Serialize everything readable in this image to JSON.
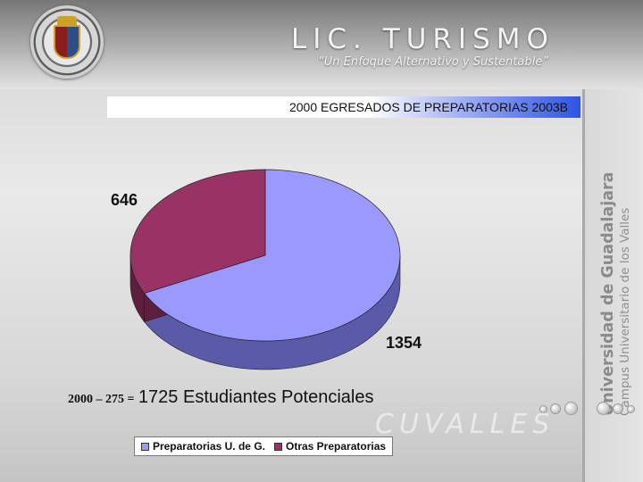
{
  "header": {
    "brand": "LIC. TURISMO",
    "tagline": "“Un Enfoque Alternativo y Sustentable”"
  },
  "side_panel": {
    "university": "Universidad de Guadalajara",
    "campus": "Campus Universitario de los Valles"
  },
  "footer": {
    "watermark": "CUVALLES",
    "calculation": "2000 – 275 =",
    "result": "1725 Estudiantes Potenciales"
  },
  "icons": {
    "seal": "university-seal-icon"
  },
  "chart_data": {
    "type": "pie",
    "title": "2000 EGRESADOS DE PREPARATORIAS 2003B",
    "series": [
      {
        "name": "Preparatorias U. de G.",
        "value": 1354,
        "color": "#9999ff",
        "side_color": "#5a5aa8"
      },
      {
        "name": "Otras Preparatorias",
        "value": 646,
        "color": "#993366",
        "side_color": "#5e1f3f"
      }
    ],
    "legend_position": "bottom",
    "three_d": true
  }
}
